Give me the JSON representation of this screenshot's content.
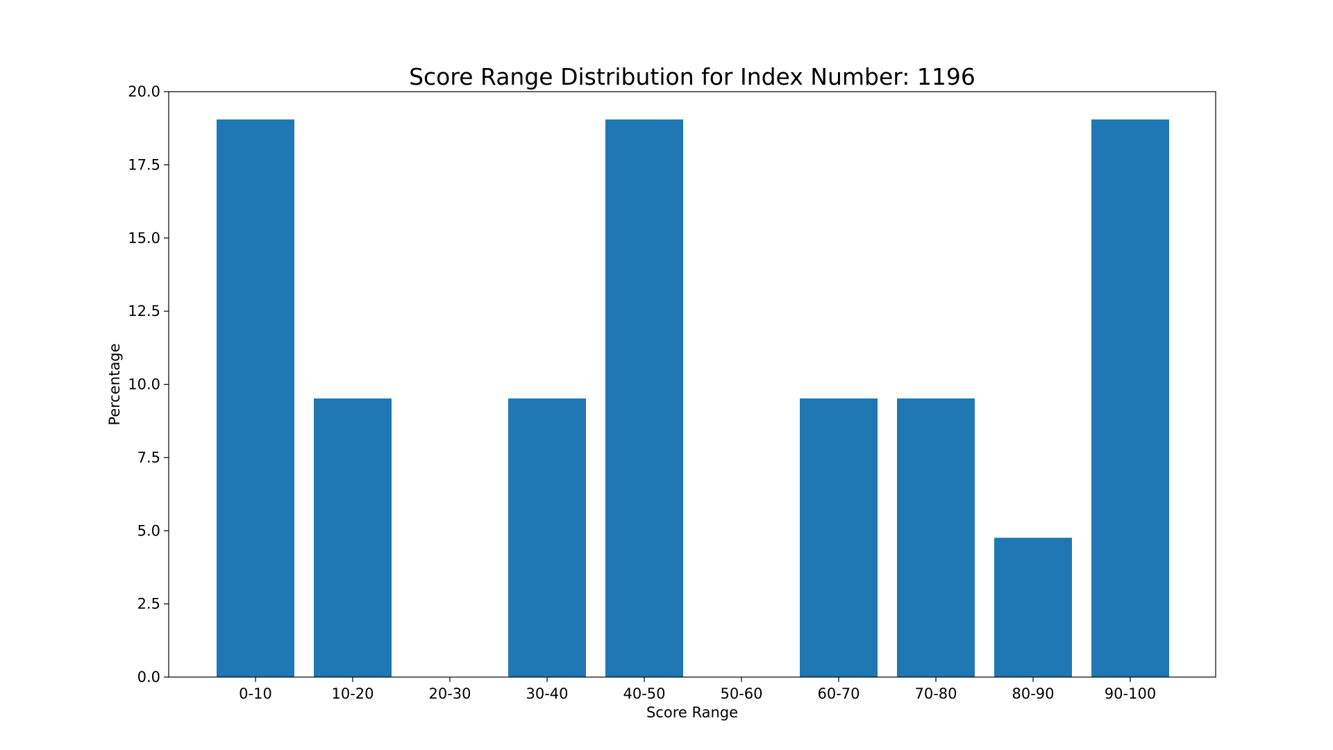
{
  "chart_data": {
    "type": "bar",
    "title": "Score Range Distribution for Index Number: 1196",
    "xlabel": "Score Range",
    "ylabel": "Percentage",
    "categories": [
      "0-10",
      "10-20",
      "20-30",
      "30-40",
      "40-50",
      "50-60",
      "60-70",
      "70-80",
      "80-90",
      "90-100"
    ],
    "values": [
      19.05,
      9.52,
      0,
      9.52,
      19.05,
      0,
      9.52,
      9.52,
      4.76,
      19.05
    ],
    "ylim": [
      0,
      20
    ],
    "yticks": [
      0.0,
      2.5,
      5.0,
      7.5,
      10.0,
      12.5,
      15.0,
      17.5,
      20.0
    ],
    "ytick_labels": [
      "0.0",
      "2.5",
      "5.0",
      "7.5",
      "10.0",
      "12.5",
      "15.0",
      "17.5",
      "20.0"
    ],
    "grid": false,
    "legend": "none",
    "bar_color": "#1f77b4"
  }
}
